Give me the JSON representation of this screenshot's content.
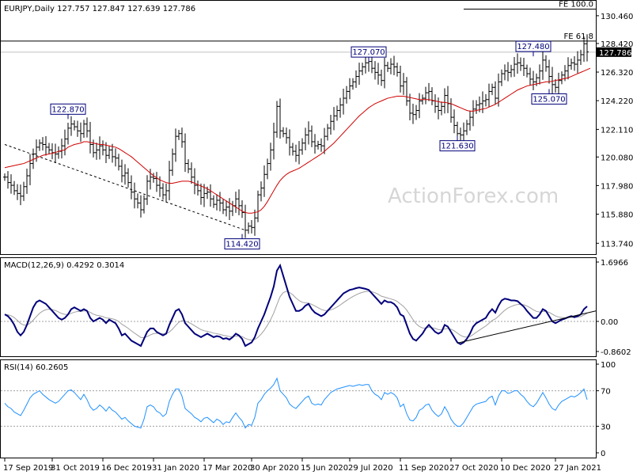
{
  "header": {
    "symbol_line": "EURJPY,Daily  127.757 127.847 127.639 127.786"
  },
  "watermark": "ActionForex.com",
  "colors": {
    "price_bars": "#000000",
    "sma": "#d00000",
    "macd": "#00007a",
    "signal": "#a0a0a0",
    "rsi": "#1e90ff",
    "current_price_box": "#000000",
    "annotation_border": "#00007a"
  },
  "chart_data": [
    {
      "type": "ohlc",
      "panel": "price",
      "ylim": [
        113.0,
        131.5
      ],
      "price_axis_ticks": [
        "130.460",
        "128.420",
        "126.320",
        "124.220",
        "122.110",
        "120.080",
        "117.980",
        "115.880",
        "113.740"
      ],
      "price_axis_tick_values": [
        130.46,
        128.42,
        126.32,
        124.22,
        122.11,
        120.08,
        117.98,
        115.88,
        113.74
      ],
      "current_price": "127.786",
      "fib_levels": [
        {
          "label": "FE 100.0",
          "value": 130.95
        },
        {
          "label": "FE 61.8",
          "value": 128.6
        }
      ],
      "annotations": [
        {
          "text": "122.870",
          "date_index": 20,
          "value": 122.87,
          "side": "above"
        },
        {
          "text": "114.420",
          "date_index": 75,
          "value": 114.42,
          "side": "below"
        },
        {
          "text": "127.070",
          "date_index": 115,
          "value": 127.07,
          "side": "above"
        },
        {
          "text": "121.630",
          "date_index": 143,
          "value": 121.63,
          "side": "below"
        },
        {
          "text": "127.480",
          "date_index": 167,
          "value": 127.48,
          "side": "above"
        },
        {
          "text": "125.070",
          "date_index": 172,
          "value": 125.07,
          "side": "below"
        }
      ],
      "series": [
        {
          "name": "price",
          "close": [
            118.6,
            118.2,
            118.0,
            117.6,
            117.4,
            117.2,
            117.9,
            118.7,
            119.6,
            120.3,
            120.8,
            121.1,
            121.0,
            120.8,
            120.6,
            120.4,
            120.3,
            120.5,
            120.9,
            121.4,
            122.2,
            122.5,
            122.3,
            122.0,
            121.8,
            122.5,
            122.0,
            121.0,
            120.4,
            120.6,
            120.9,
            120.6,
            120.2,
            120.6,
            120.1,
            120.0,
            119.4,
            118.7,
            118.9,
            118.2,
            117.5,
            117.0,
            116.7,
            116.2,
            117.0,
            118.3,
            118.6,
            118.5,
            118.0,
            117.8,
            117.3,
            117.6,
            119.1,
            120.3,
            121.6,
            121.8,
            121.2,
            119.6,
            119.2,
            118.6,
            118.0,
            117.6,
            117.1,
            117.4,
            117.5,
            117.0,
            116.6,
            116.9,
            116.7,
            116.2,
            116.4,
            116.1,
            116.5,
            117.0,
            116.5,
            116.0,
            114.7,
            115.0,
            114.9,
            115.6,
            117.3,
            117.8,
            118.8,
            119.6,
            120.6,
            121.9,
            123.8,
            122.0,
            121.8,
            121.5,
            120.8,
            120.5,
            120.2,
            120.6,
            121.1,
            121.7,
            122.0,
            121.2,
            120.9,
            121.0,
            120.9,
            121.6,
            122.2,
            122.7,
            123.1,
            123.5,
            123.9,
            124.4,
            124.9,
            125.3,
            125.6,
            126.0,
            126.4,
            126.7,
            127.0,
            127.1,
            126.6,
            126.3,
            126.1,
            125.7,
            126.8,
            126.6,
            126.9,
            126.7,
            126.3,
            125.3,
            125.6,
            124.2,
            123.3,
            123.2,
            123.5,
            124.2,
            124.4,
            124.8,
            124.9,
            124.2,
            123.8,
            123.5,
            123.8,
            124.6,
            124.0,
            123.0,
            122.4,
            121.8,
            121.7,
            122.0,
            122.5,
            123.0,
            123.6,
            123.9,
            124.0,
            124.2,
            124.3,
            124.9,
            125.2,
            124.4,
            125.6,
            126.2,
            126.4,
            126.3,
            126.5,
            126.9,
            127.0,
            126.8,
            126.6,
            126.2,
            125.8,
            125.6,
            125.9,
            126.4,
            127.2,
            126.7,
            126.0,
            125.4,
            125.2,
            125.7,
            126.1,
            126.4,
            126.8,
            127.0,
            126.9,
            127.2,
            127.6,
            128.4,
            127.8
          ]
        },
        {
          "name": "sma",
          "values": [
            119.3,
            119.35,
            119.4,
            119.45,
            119.5,
            119.55,
            119.6,
            119.7,
            119.8,
            119.9,
            120.0,
            120.1,
            120.2,
            120.25,
            120.3,
            120.35,
            120.4,
            120.5,
            120.55,
            120.6,
            120.8,
            120.9,
            121.0,
            121.05,
            121.1,
            121.2,
            121.2,
            121.15,
            121.1,
            121.05,
            121.0,
            121.0,
            120.95,
            120.9,
            120.85,
            120.8,
            120.7,
            120.55,
            120.4,
            120.25,
            120.1,
            119.9,
            119.7,
            119.5,
            119.3,
            119.1,
            118.9,
            118.7,
            118.55,
            118.4,
            118.3,
            118.2,
            118.15,
            118.15,
            118.2,
            118.25,
            118.3,
            118.3,
            118.3,
            118.25,
            118.15,
            118.05,
            117.95,
            117.85,
            117.75,
            117.6,
            117.45,
            117.3,
            117.15,
            117.0,
            116.85,
            116.7,
            116.55,
            116.4,
            116.25,
            116.1,
            116.0,
            115.95,
            115.95,
            116.0,
            116.05,
            116.2,
            116.45,
            116.8,
            117.2,
            117.6,
            118.0,
            118.35,
            118.6,
            118.8,
            118.95,
            119.05,
            119.15,
            119.25,
            119.4,
            119.55,
            119.7,
            119.85,
            120.0,
            120.15,
            120.3,
            120.5,
            120.7,
            120.9,
            121.1,
            121.35,
            121.6,
            121.85,
            122.1,
            122.35,
            122.6,
            122.85,
            123.1,
            123.3,
            123.5,
            123.7,
            123.85,
            124.0,
            124.1,
            124.2,
            124.3,
            124.4,
            124.45,
            124.5,
            124.55,
            124.55,
            124.55,
            124.5,
            124.45,
            124.4,
            124.35,
            124.3,
            124.3,
            124.3,
            124.3,
            124.25,
            124.2,
            124.15,
            124.1,
            124.1,
            124.05,
            124.0,
            123.9,
            123.8,
            123.7,
            123.6,
            123.5,
            123.45,
            123.45,
            123.5,
            123.55,
            123.6,
            123.65,
            123.75,
            123.85,
            123.95,
            124.1,
            124.25,
            124.4,
            124.55,
            124.7,
            124.85,
            125.0,
            125.1,
            125.2,
            125.3,
            125.35,
            125.4,
            125.45,
            125.5,
            125.55,
            125.6,
            125.6,
            125.65,
            125.7,
            125.75,
            125.8,
            125.85,
            125.9,
            126.0,
            126.1,
            126.2,
            126.3,
            126.4,
            126.5,
            126.6
          ]
        }
      ],
      "trendline": {
        "from": {
          "date_index": 0,
          "value": 121.0
        },
        "to": {
          "date_index": 76,
          "value": 114.7
        }
      }
    },
    {
      "type": "line",
      "panel": "macd",
      "title": "MACD(12,26,9) 0.4292 0.3014",
      "ylim": [
        -0.8602,
        1.6966
      ],
      "axis_ticks": [
        "1.6966",
        "0.00",
        "-0.8602"
      ],
      "axis_tick_values": [
        1.6966,
        0.0,
        -0.8602
      ],
      "series": [
        {
          "name": "MACD",
          "values": [
            0.2,
            0.15,
            0.05,
            -0.1,
            -0.3,
            -0.4,
            -0.3,
            -0.1,
            0.15,
            0.4,
            0.55,
            0.6,
            0.55,
            0.5,
            0.4,
            0.3,
            0.2,
            0.1,
            0.05,
            0.1,
            0.2,
            0.35,
            0.4,
            0.35,
            0.3,
            0.35,
            0.3,
            0.1,
            0.0,
            0.05,
            0.1,
            0.05,
            -0.05,
            0.05,
            0.0,
            -0.05,
            -0.2,
            -0.4,
            -0.35,
            -0.45,
            -0.55,
            -0.6,
            -0.65,
            -0.7,
            -0.5,
            -0.3,
            -0.2,
            -0.2,
            -0.3,
            -0.35,
            -0.4,
            -0.35,
            -0.1,
            0.1,
            0.3,
            0.35,
            0.2,
            -0.05,
            -0.15,
            -0.25,
            -0.35,
            -0.4,
            -0.45,
            -0.4,
            -0.35,
            -0.4,
            -0.45,
            -0.42,
            -0.44,
            -0.5,
            -0.48,
            -0.52,
            -0.45,
            -0.35,
            -0.4,
            -0.5,
            -0.7,
            -0.65,
            -0.6,
            -0.45,
            -0.2,
            0.0,
            0.2,
            0.45,
            0.7,
            1.0,
            1.45,
            1.6,
            1.3,
            1.0,
            0.7,
            0.5,
            0.3,
            0.3,
            0.35,
            0.45,
            0.5,
            0.35,
            0.25,
            0.2,
            0.15,
            0.2,
            0.3,
            0.4,
            0.5,
            0.6,
            0.7,
            0.8,
            0.85,
            0.9,
            0.92,
            0.95,
            0.97,
            0.95,
            0.93,
            0.9,
            0.8,
            0.7,
            0.6,
            0.5,
            0.6,
            0.55,
            0.55,
            0.5,
            0.4,
            0.2,
            0.15,
            -0.1,
            -0.35,
            -0.5,
            -0.55,
            -0.45,
            -0.35,
            -0.2,
            -0.1,
            -0.2,
            -0.3,
            -0.35,
            -0.3,
            -0.1,
            -0.15,
            -0.3,
            -0.45,
            -0.6,
            -0.65,
            -0.6,
            -0.5,
            -0.35,
            -0.15,
            -0.05,
            0.0,
            0.05,
            0.1,
            0.25,
            0.35,
            0.25,
            0.45,
            0.6,
            0.65,
            0.63,
            0.6,
            0.6,
            0.58,
            0.5,
            0.42,
            0.3,
            0.2,
            0.1,
            0.1,
            0.2,
            0.35,
            0.3,
            0.15,
            0.0,
            -0.05,
            0.0,
            0.05,
            0.08,
            0.12,
            0.15,
            0.12,
            0.15,
            0.2,
            0.35,
            0.43
          ]
        }
      ],
      "trendline": {
        "from": {
          "date_index": 143,
          "value": -0.62
        },
        "to": {
          "date_index": 189,
          "value": 0.2
        }
      }
    },
    {
      "type": "line",
      "panel": "rsi",
      "title": "RSI(14) 60.2605",
      "ylim": [
        0,
        100
      ],
      "axis_ticks": [
        "100",
        "70",
        "30",
        "0"
      ],
      "axis_tick_values": [
        100,
        70,
        30,
        0
      ],
      "guide_lines": [
        70,
        30
      ],
      "series": [
        {
          "name": "RSI",
          "values": [
            56,
            52,
            50,
            46,
            44,
            42,
            48,
            55,
            62,
            66,
            68,
            70,
            66,
            63,
            60,
            58,
            56,
            58,
            62,
            66,
            70,
            71,
            68,
            64,
            60,
            66,
            60,
            52,
            48,
            50,
            54,
            51,
            47,
            52,
            48,
            46,
            42,
            38,
            40,
            36,
            33,
            30,
            29,
            28,
            38,
            52,
            54,
            52,
            47,
            45,
            41,
            44,
            58,
            66,
            72,
            72,
            64,
            50,
            47,
            44,
            40,
            38,
            35,
            39,
            40,
            37,
            34,
            38,
            36,
            32,
            35,
            34,
            40,
            45,
            40,
            36,
            28,
            32,
            31,
            40,
            56,
            60,
            66,
            70,
            73,
            77,
            84,
            70,
            66,
            62,
            55,
            52,
            50,
            54,
            58,
            62,
            64,
            56,
            54,
            55,
            54,
            60,
            64,
            68,
            70,
            72,
            73,
            74,
            75,
            76,
            75,
            76,
            77,
            76,
            77,
            77,
            70,
            66,
            64,
            60,
            68,
            66,
            68,
            66,
            62,
            52,
            55,
            44,
            37,
            36,
            40,
            48,
            50,
            54,
            55,
            48,
            44,
            41,
            44,
            52,
            46,
            38,
            33,
            30,
            30,
            34,
            40,
            46,
            52,
            55,
            56,
            57,
            58,
            62,
            64,
            54,
            64,
            70,
            70,
            67,
            68,
            70,
            70,
            66,
            63,
            58,
            54,
            52,
            56,
            62,
            68,
            62,
            55,
            50,
            48,
            54,
            58,
            60,
            62,
            64,
            63,
            65,
            68,
            72,
            60
          ]
        }
      ]
    }
  ],
  "date_axis": {
    "labels": [
      "17 Sep 2019",
      "31 Oct 2019",
      "16 Dec 2019",
      "31 Jan 2020",
      "17 Mar 2020",
      "30 Apr 2020",
      "15 Jun 2020",
      "29 Jul 2020",
      "11 Sep 2020",
      "27 Oct 2020",
      "10 Dec 2020",
      "27 Jan 2021"
    ],
    "label_indices": [
      0,
      15,
      31,
      47,
      63,
      78,
      94,
      109,
      125,
      141,
      157,
      174
    ]
  }
}
